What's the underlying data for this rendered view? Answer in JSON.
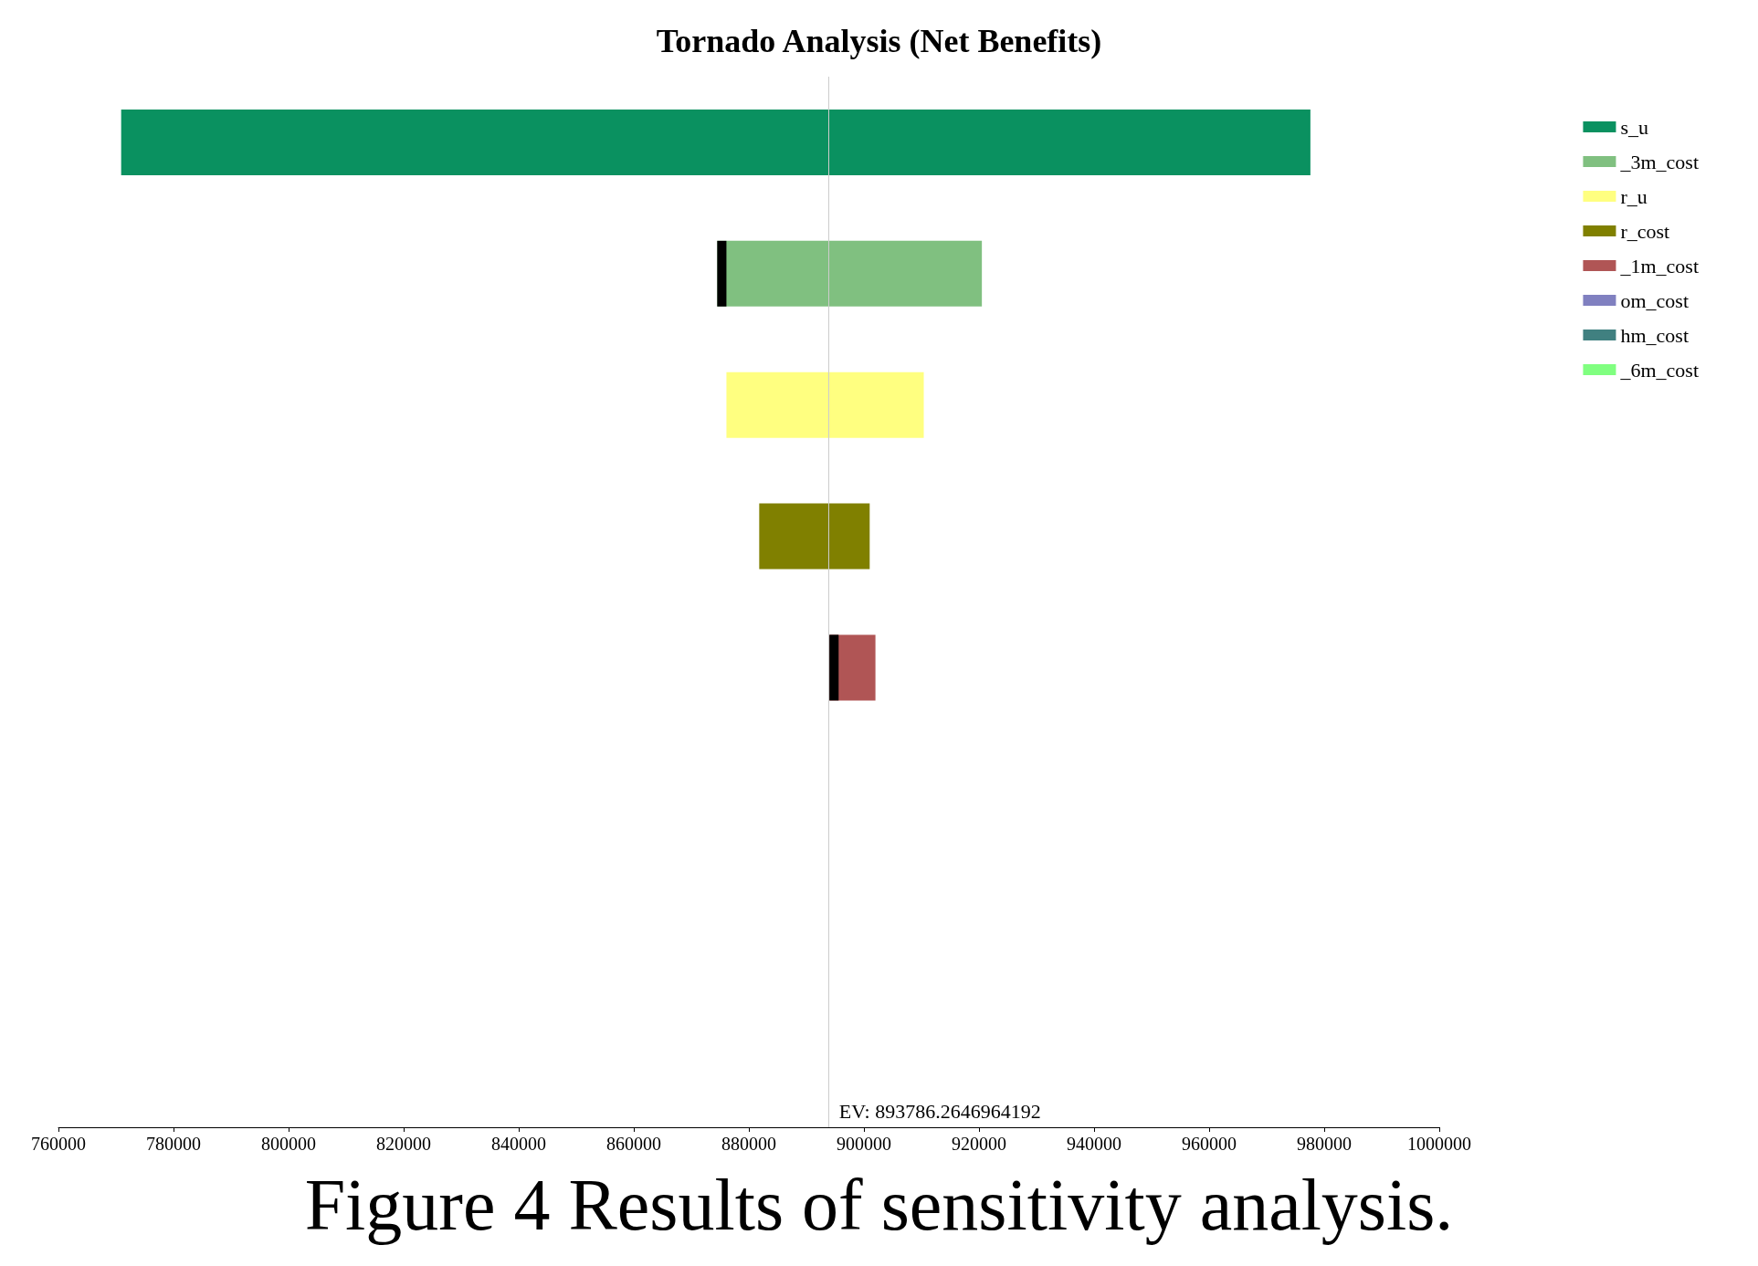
{
  "chart_data": {
    "type": "bar",
    "orientation": "horizontal",
    "title": "Tornado Analysis (Net Benefits)",
    "categories": [
      null,
      null,
      null,
      null,
      null,
      null,
      null,
      null
    ],
    "series": [
      {
        "name": "s_u",
        "color": "#0a9160",
        "base": [
          770900,
          null,
          null,
          null,
          null,
          null,
          null,
          null
        ],
        "values": [
          206700,
          null,
          null,
          null,
          null,
          null,
          null,
          null
        ]
      },
      {
        "name": "_3m_cost",
        "color": "#80c080",
        "base": [
          null,
          874500,
          null,
          null,
          null,
          null,
          null,
          null
        ],
        "values": [
          null,
          46000,
          null,
          null,
          null,
          null,
          null,
          null
        ]
      },
      {
        "name": "r_u",
        "color": "#ffff80",
        "base": [
          null,
          null,
          876100,
          null,
          null,
          null,
          null,
          null
        ],
        "values": [
          null,
          null,
          34300,
          null,
          null,
          null,
          null,
          null
        ]
      },
      {
        "name": "r_cost",
        "color": "#808000",
        "base": [
          null,
          null,
          null,
          881800,
          null,
          null,
          null,
          null
        ],
        "values": [
          null,
          null,
          null,
          19200,
          null,
          null,
          null,
          null
        ]
      },
      {
        "name": "_1m_cost",
        "color": "#b05555",
        "base": [
          null,
          null,
          null,
          null,
          894000,
          null,
          null,
          null
        ],
        "values": [
          null,
          null,
          null,
          null,
          8000,
          null,
          null,
          null
        ]
      },
      {
        "name": "om_cost",
        "color": "#8080c0",
        "values": [
          null,
          null,
          null,
          null,
          null,
          null,
          null,
          null
        ]
      },
      {
        "name": "hm_cost",
        "color": "#408080",
        "values": [
          null,
          null,
          null,
          null,
          null,
          null,
          null,
          null
        ]
      },
      {
        "name": "_6m_cost",
        "color": "#80ff80",
        "values": [
          null,
          null,
          null,
          null,
          null,
          null,
          null,
          null
        ]
      },
      {
        "color": "#000000",
        "base": [
          null,
          874500,
          null,
          null,
          894000,
          null,
          null,
          null
        ],
        "values": [
          null,
          1600,
          null,
          null,
          1600,
          null,
          null,
          null
        ]
      }
    ],
    "xlim": [
      760000,
      1000000
    ],
    "xticks": [
      760000,
      780000,
      800000,
      820000,
      840000,
      860000,
      880000,
      900000,
      920000,
      940000,
      960000,
      980000,
      1000000
    ],
    "ref_lines": [
      {
        "axis": "x",
        "value": 893786.2646964192,
        "label": "EV: 893786.2646964192",
        "color": "#cccccc"
      }
    ],
    "annotations": [
      "Figure 4 Results of sensitivity analysis."
    ],
    "legend": "top right",
    "grid": false,
    "tick_labels": "x"
  }
}
